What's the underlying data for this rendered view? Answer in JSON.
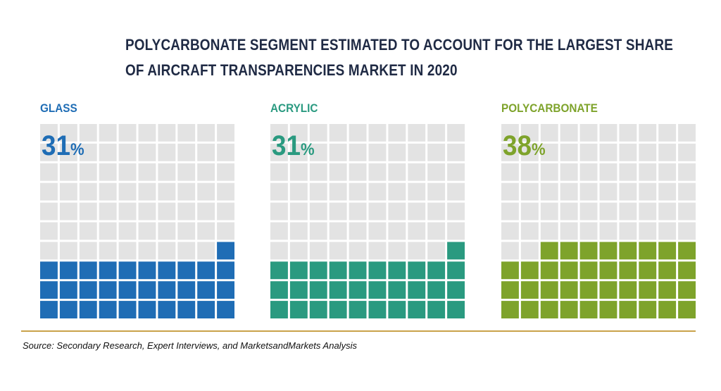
{
  "title_lines": [
    "POLYCARBONATE SEGMENT ESTIMATED TO ACCOUNT FOR THE LARGEST SHARE",
    "OF AIRCRAFT TRANSPARENCIES MARKET IN 2020"
  ],
  "source": "Source: Secondary Research, Expert Interviews, and MarketsandMarkets Analysis",
  "colors": {
    "empty_cell": "#e3e3e3",
    "title": "#1f2a44",
    "divider": "#c9a24a"
  },
  "chart_data": {
    "type": "waffle",
    "grid": {
      "rows": 10,
      "cols": 10
    },
    "unit": "%",
    "title": "POLYCARBONATE SEGMENT ESTIMATED TO ACCOUNT FOR THE LARGEST SHARE OF AIRCRAFT TRANSPARENCIES MARKET IN 2020",
    "series": [
      {
        "name": "GLASS",
        "value": 31,
        "value_label": "31",
        "color": "#1f6db5"
      },
      {
        "name": "ACRYLIC",
        "value": 31,
        "value_label": "31",
        "color": "#2a9a80"
      },
      {
        "name": "POLYCARBONATE",
        "value": 38,
        "value_label": "38",
        "color": "#7ea32b"
      }
    ]
  }
}
